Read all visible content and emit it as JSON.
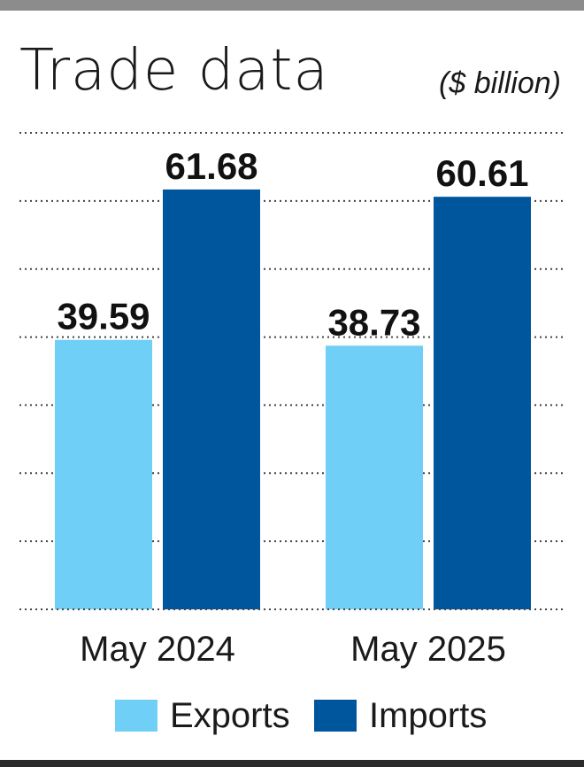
{
  "chart_data": {
    "type": "bar",
    "title": "Trade data",
    "unit_label": "($ billion)",
    "categories": [
      "May 2024",
      "May 2025"
    ],
    "series": [
      {
        "name": "Exports",
        "color": "#6fcff6",
        "values": [
          39.59,
          38.73
        ]
      },
      {
        "name": "Imports",
        "color": "#00569d",
        "values": [
          61.68,
          60.61
        ]
      }
    ],
    "data_labels": [
      [
        "39.59",
        "38.73"
      ],
      [
        "61.68",
        "60.61"
      ]
    ],
    "ylim": [
      0,
      70
    ],
    "grid": true,
    "legend_position": "bottom"
  }
}
